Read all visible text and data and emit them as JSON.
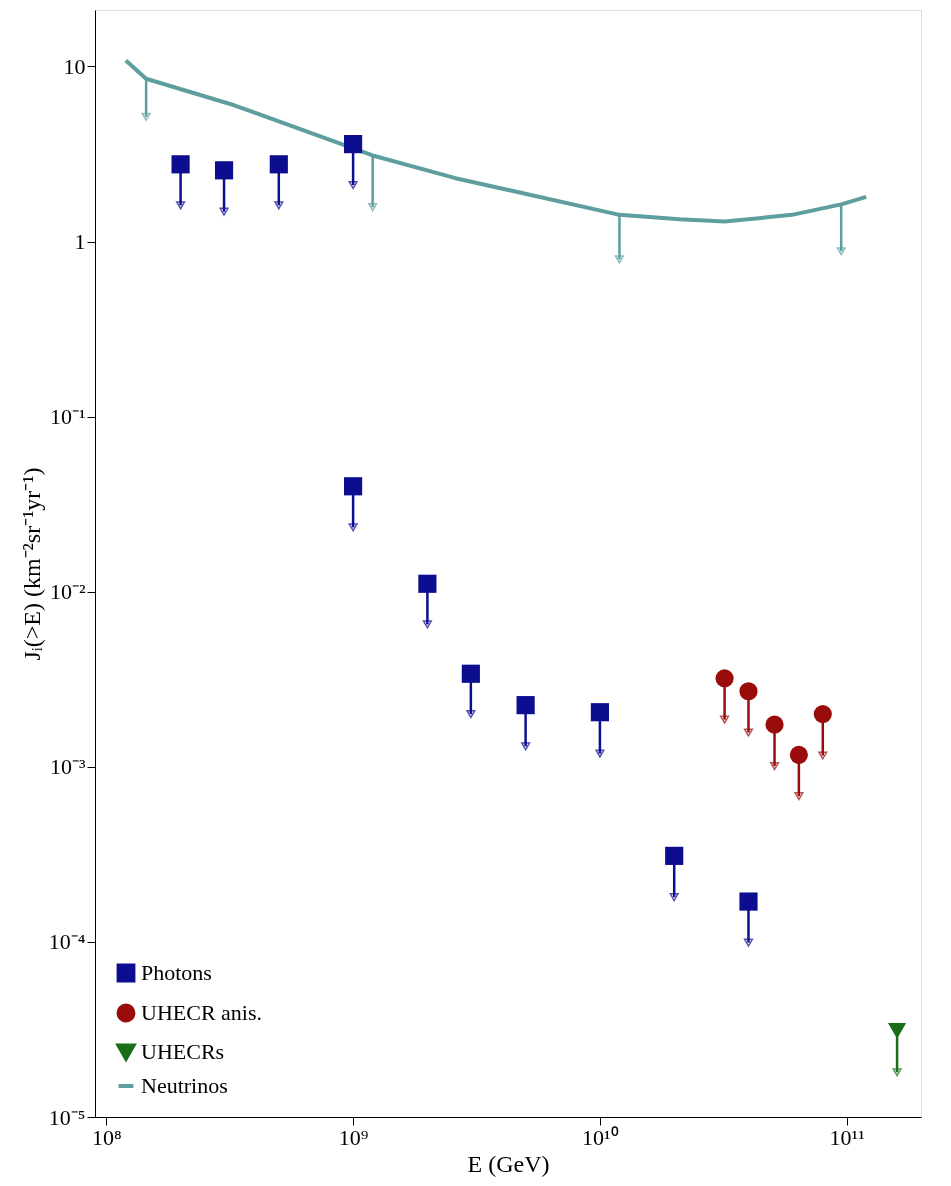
{
  "chart_data": {
    "type": "scatter",
    "xlabel": "E (GeV)",
    "ylabel": "Jᵢ(>E) (km⁻²sr⁻¹yr⁻¹)",
    "log": "xy",
    "grid": false,
    "legend": "bottom left",
    "xlim": [
      90000000,
      200000000000
    ],
    "ylim": [
      1e-05,
      21
    ],
    "xticks": [
      {
        "value": 100000000,
        "label": "10⁸"
      },
      {
        "value": 1000000000,
        "label": "10⁹"
      },
      {
        "value": 10000000000,
        "label": "10¹⁰"
      },
      {
        "value": 100000000000,
        "label": "10¹¹"
      }
    ],
    "yticks": [
      10,
      1,
      {
        "value": 0.1,
        "label": "10⁻¹"
      },
      {
        "value": 0.01,
        "label": "10⁻²"
      },
      {
        "value": 0.001,
        "label": "10⁻³"
      },
      {
        "value": 0.0001,
        "label": "10⁻⁴"
      },
      {
        "value": 1e-05,
        "label": "10⁻⁵"
      }
    ],
    "series": [
      {
        "name": "Photons",
        "marker": "square",
        "color": "#0d0d8f",
        "x": [
          200000000,
          300000000,
          500000000,
          1000000000,
          1000000000,
          2000000000,
          3000000000,
          5000000000,
          10000000000,
          20000000000,
          40000000000
        ],
        "values": [
          2.76,
          2.55,
          2.76,
          3.6,
          0.04,
          0.0111,
          0.0034,
          0.00225,
          0.00205,
          0.00031,
          0.00017
        ],
        "errors": [
          [
            1.61,
            2.76
          ],
          [
            1.48,
            2.55
          ],
          [
            1.61,
            2.76
          ],
          [
            2.1,
            3.6
          ],
          [
            0.0233,
            0.04
          ],
          [
            0.0065,
            0.0111
          ],
          [
            0.002,
            0.0034
          ],
          [
            0.00131,
            0.00225
          ],
          [
            0.00119,
            0.00205
          ],
          [
            0.00018,
            0.00031
          ],
          [
            9.9e-05,
            0.00017
          ]
        ]
      },
      {
        "name": "UHECR anis.",
        "marker": "circle",
        "color": "#9a0b0b",
        "x": [
          32000000000,
          40000000000,
          51000000000,
          64000000000,
          80000000000
        ],
        "values": [
          0.0032,
          0.0027,
          0.00174,
          0.00117,
          0.002
        ],
        "errors": [
          [
            0.00186,
            0.0032
          ],
          [
            0.00157,
            0.0027
          ],
          [
            0.00101,
            0.00174
          ],
          [
            0.00068,
            0.00117
          ],
          [
            0.00116,
            0.002
          ]
        ]
      },
      {
        "name": "UHECRs",
        "marker": "triangle",
        "color": "#1a6e1a",
        "x": [
          160000000000
        ],
        "values": [
          3.1e-05
        ],
        "errors": [
          [
            1.8e-05,
            3.1e-05
          ]
        ]
      },
      {
        "name": "Neutrinos",
        "type": "line",
        "marker": "none",
        "line_style": "solid",
        "color": "#5f9e9e",
        "x": [
          120000000,
          145000000,
          330000000,
          1200000000,
          2600000000,
          12000000000,
          21000000000,
          32000000000,
          60000000000,
          95000000000,
          120000000000
        ],
        "values": [
          10.8,
          8.5,
          6.0,
          3.1,
          2.3,
          1.42,
          1.34,
          1.3,
          1.42,
          1.63,
          1.8
        ],
        "errors": [
          null,
          [
            5.15,
            8.5
          ],
          null,
          [
            1.57,
            3.1
          ],
          null,
          [
            0.79,
            1.42
          ],
          null,
          null,
          null,
          [
            0.88,
            1.63
          ],
          null
        ]
      }
    ]
  }
}
